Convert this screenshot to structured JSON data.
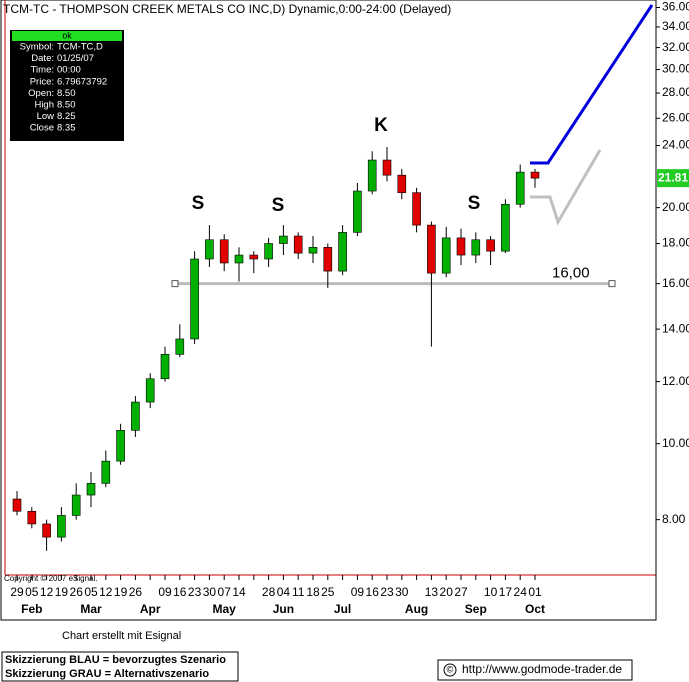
{
  "chart_data": {
    "type": "candlestick",
    "title": "TCM-TC - THOMPSON CREEK METALS CO INC,D) Dynamic,0:00-24:00 (Delayed)",
    "copyright": "Copyright © 2007 eSignal.",
    "categories": [
      "29",
      "05",
      "12",
      "19",
      "26",
      "05",
      "12",
      "19",
      "26",
      null,
      "09",
      "16",
      "23",
      "30",
      "07",
      "14",
      null,
      "28",
      "04",
      "11",
      "18",
      "25",
      null,
      "09",
      "16",
      "23",
      "30",
      null,
      "13",
      "20",
      "27",
      null,
      "10",
      "17",
      "24",
      "01"
    ],
    "months": [
      null,
      "Feb",
      null,
      null,
      null,
      "Mar",
      null,
      null,
      null,
      "Apr",
      null,
      null,
      null,
      null,
      "May",
      null,
      null,
      null,
      "Jun",
      null,
      null,
      null,
      "Jul",
      null,
      null,
      null,
      null,
      "Aug",
      null,
      null,
      null,
      "Sep",
      null,
      null,
      null,
      "Oct"
    ],
    "open": [
      8.5,
      8.2,
      7.9,
      7.6,
      8.1,
      8.6,
      8.9,
      9.5,
      10.4,
      11.3,
      12.1,
      13.0,
      13.6,
      17.2,
      18.2,
      17.0,
      17.4,
      17.2,
      18.0,
      18.4,
      17.5,
      17.8,
      16.6,
      18.6,
      21.0,
      23.0,
      22.0,
      20.9,
      19.0,
      16.5,
      18.3,
      17.4,
      18.2,
      17.6,
      20.2,
      22.2
    ],
    "high": [
      8.7,
      8.3,
      8.0,
      8.3,
      8.9,
      9.2,
      9.8,
      10.6,
      11.5,
      12.3,
      13.3,
      14.2,
      17.6,
      19.0,
      18.5,
      17.8,
      17.6,
      18.3,
      19.0,
      18.6,
      18.4,
      18.0,
      19.0,
      21.5,
      23.6,
      23.9,
      22.4,
      21.2,
      19.2,
      18.9,
      18.8,
      18.6,
      18.4,
      20.5,
      22.7,
      22.4
    ],
    "low": [
      8.1,
      7.8,
      7.3,
      7.5,
      8.0,
      8.3,
      8.8,
      9.4,
      10.2,
      11.1,
      12.0,
      12.9,
      13.4,
      16.8,
      16.6,
      16.1,
      16.5,
      16.8,
      17.4,
      17.2,
      17.0,
      15.8,
      16.4,
      18.4,
      20.8,
      21.6,
      20.5,
      18.6,
      13.3,
      16.3,
      16.9,
      17.0,
      16.9,
      17.5,
      20.0,
      21.2
    ],
    "close": [
      8.2,
      7.9,
      7.6,
      8.1,
      8.6,
      8.9,
      9.5,
      10.4,
      11.3,
      12.1,
      13.0,
      13.6,
      17.2,
      18.2,
      17.0,
      17.4,
      17.2,
      18.0,
      18.4,
      17.5,
      17.8,
      16.6,
      18.6,
      21.0,
      23.0,
      22.0,
      20.9,
      19.0,
      16.5,
      18.3,
      17.4,
      18.2,
      17.6,
      20.2,
      22.2,
      21.81
    ],
    "up_color": "#00b000",
    "down_color": "#e00000",
    "ylim": [
      6.8,
      36.8
    ],
    "log_scale": true,
    "yticks": [
      {
        "value": 8,
        "label": "8.00"
      },
      {
        "value": 10,
        "label": "10.00"
      },
      {
        "value": 12,
        "label": "12.00"
      },
      {
        "value": 14,
        "label": "14.00"
      },
      {
        "value": 16,
        "label": "16.00"
      },
      {
        "value": 18,
        "label": "18.00"
      },
      {
        "value": 20,
        "label": "20.00"
      },
      {
        "value": 24,
        "label": "24.00"
      },
      {
        "value": 26,
        "label": "26.00"
      },
      {
        "value": 28,
        "label": "28.00"
      },
      {
        "value": 30,
        "label": "30.00"
      },
      {
        "value": 32,
        "label": "32.00"
      },
      {
        "value": 34,
        "label": "34.00"
      },
      {
        "value": 36,
        "label": "36.00"
      }
    ],
    "annotations": [
      "S",
      "S",
      "K",
      "S"
    ],
    "support": {
      "value": 16,
      "label": "16,00"
    }
  },
  "info_box": {
    "header": "ok",
    "rows": [
      [
        "Symbol:",
        "TCM-TC,D"
      ],
      [
        "Date:",
        "01/25/07"
      ],
      [
        "Time:",
        "00:00"
      ],
      [
        "Price:",
        "6.79673792"
      ],
      [
        "Open:",
        "8.50"
      ],
      [
        "High",
        "8.50"
      ],
      [
        "Low",
        "8.25"
      ],
      [
        "Close",
        "8.35"
      ]
    ]
  },
  "footer": {
    "credit": "Chart erstellt mit Esignal",
    "legend": [
      "Skizzierung BLAU = bevorzugtes Szenario",
      "Skizzierung GRAU = Alternativszenario"
    ],
    "copyright": "©",
    "url": "http://www.godmode-trader.de"
  }
}
